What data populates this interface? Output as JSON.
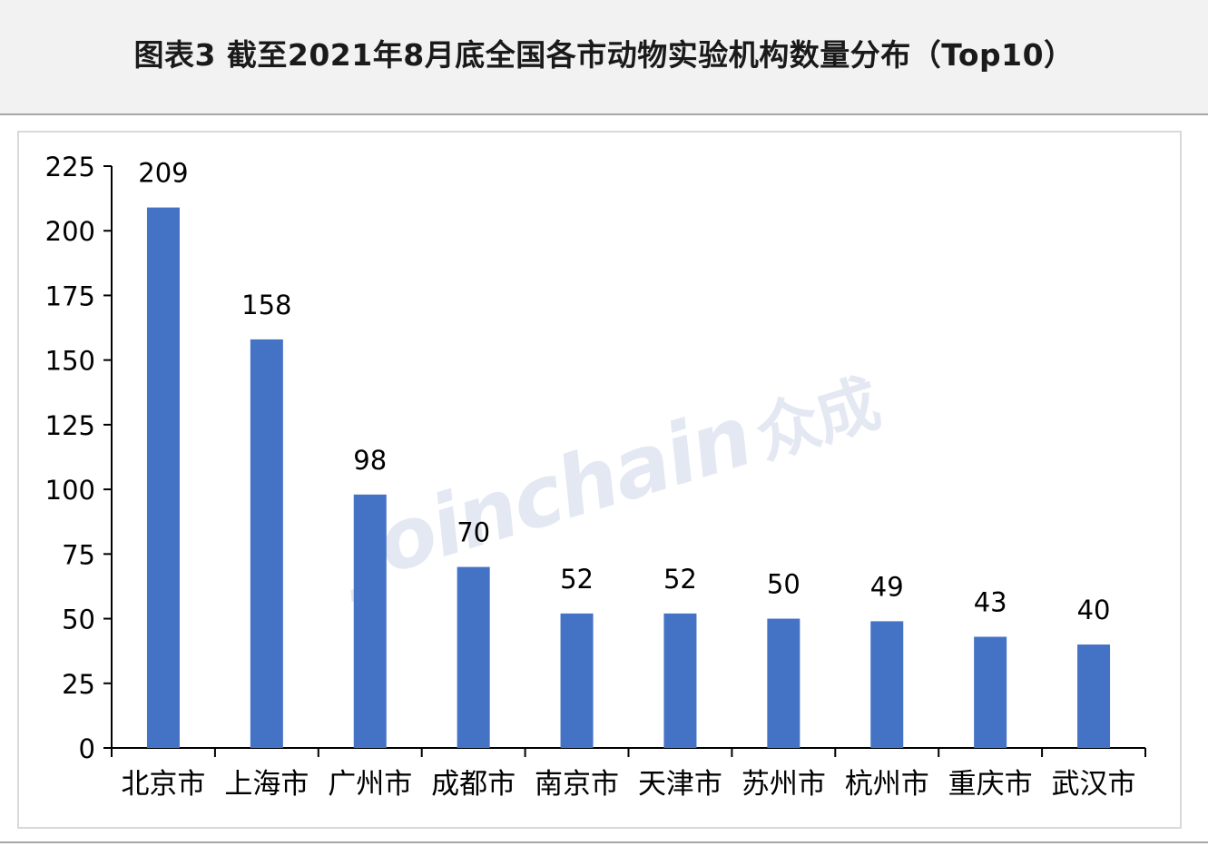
{
  "title": "图表3 截至2021年8月底全国各市动物实验机构数量分布（Top10）",
  "watermark": {
    "text": "Joinchain",
    "cn": "众成"
  },
  "colors": {
    "bar": "#4472c4",
    "axis": "#000000",
    "header_bg": "#f2f2f2"
  },
  "chart_data": {
    "type": "bar",
    "title": "",
    "xlabel": "",
    "ylabel": "",
    "categories": [
      "北京市",
      "上海市",
      "广州市",
      "成都市",
      "南京市",
      "天津市",
      "苏州市",
      "杭州市",
      "重庆市",
      "武汉市"
    ],
    "values": [
      209,
      158,
      98,
      70,
      52,
      52,
      50,
      49,
      43,
      40
    ],
    "ylim": [
      0,
      225
    ],
    "yticks": [
      0,
      25,
      50,
      75,
      100,
      125,
      150,
      175,
      200,
      225
    ],
    "data_labels": true,
    "grid": false,
    "legend": "none"
  }
}
